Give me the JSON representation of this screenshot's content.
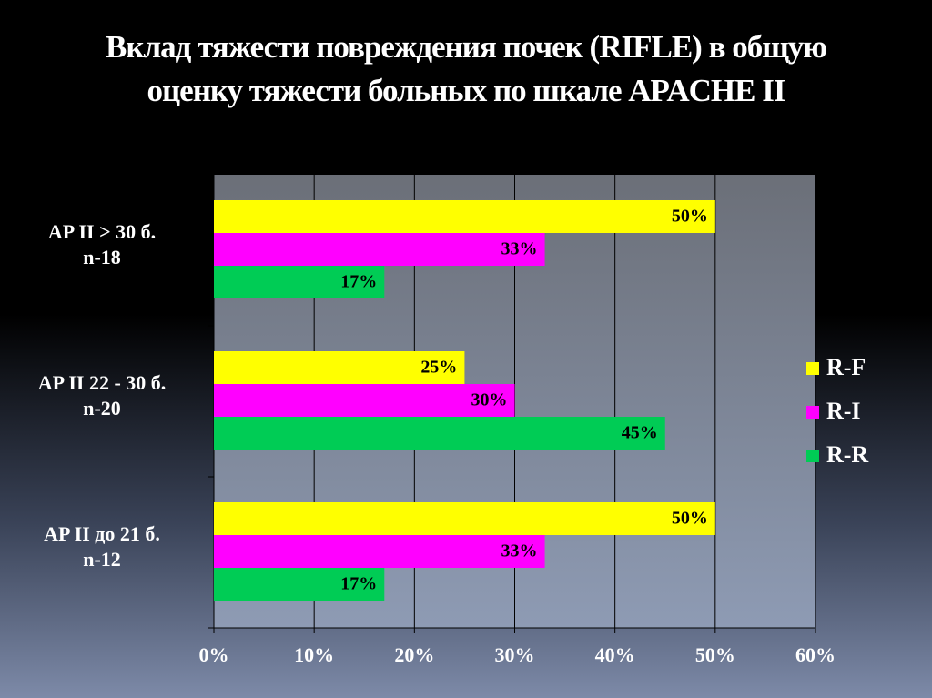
{
  "chart_data": {
    "type": "hbar",
    "title": "Вклад тяжести повреждения почек (RIFLE) в общую оценку тяжести больных по шкале APACHE II",
    "categories": [
      "AP II   >   30 б.\nn-18",
      "AP II 22 - 30 б.\nn-20",
      "AP II до 21 б.\nn-12"
    ],
    "series": [
      {
        "name": "R-F",
        "color": "#ffff00",
        "values": [
          50,
          25,
          50
        ],
        "value_labels": [
          "50%",
          "25%",
          "50%"
        ]
      },
      {
        "name": "R-I",
        "color": "#ff00ff",
        "values": [
          33,
          30,
          33
        ],
        "value_labels": [
          "33%",
          "30%",
          "33%"
        ]
      },
      {
        "name": "R-R",
        "color": "#00cc55",
        "values": [
          17,
          45,
          17
        ],
        "value_labels": [
          "17%",
          "45%",
          "17%"
        ]
      }
    ],
    "xlim": [
      0,
      60
    ],
    "xticks": [
      {
        "value": 0,
        "label": "0%"
      },
      {
        "value": 10,
        "label": "10%"
      },
      {
        "value": 20,
        "label": "20%"
      },
      {
        "value": 30,
        "label": "30%"
      },
      {
        "value": 40,
        "label": "40%"
      },
      {
        "value": 50,
        "label": "50%"
      },
      {
        "value": 60,
        "label": "60%"
      }
    ],
    "grid": true,
    "legend": "right"
  }
}
